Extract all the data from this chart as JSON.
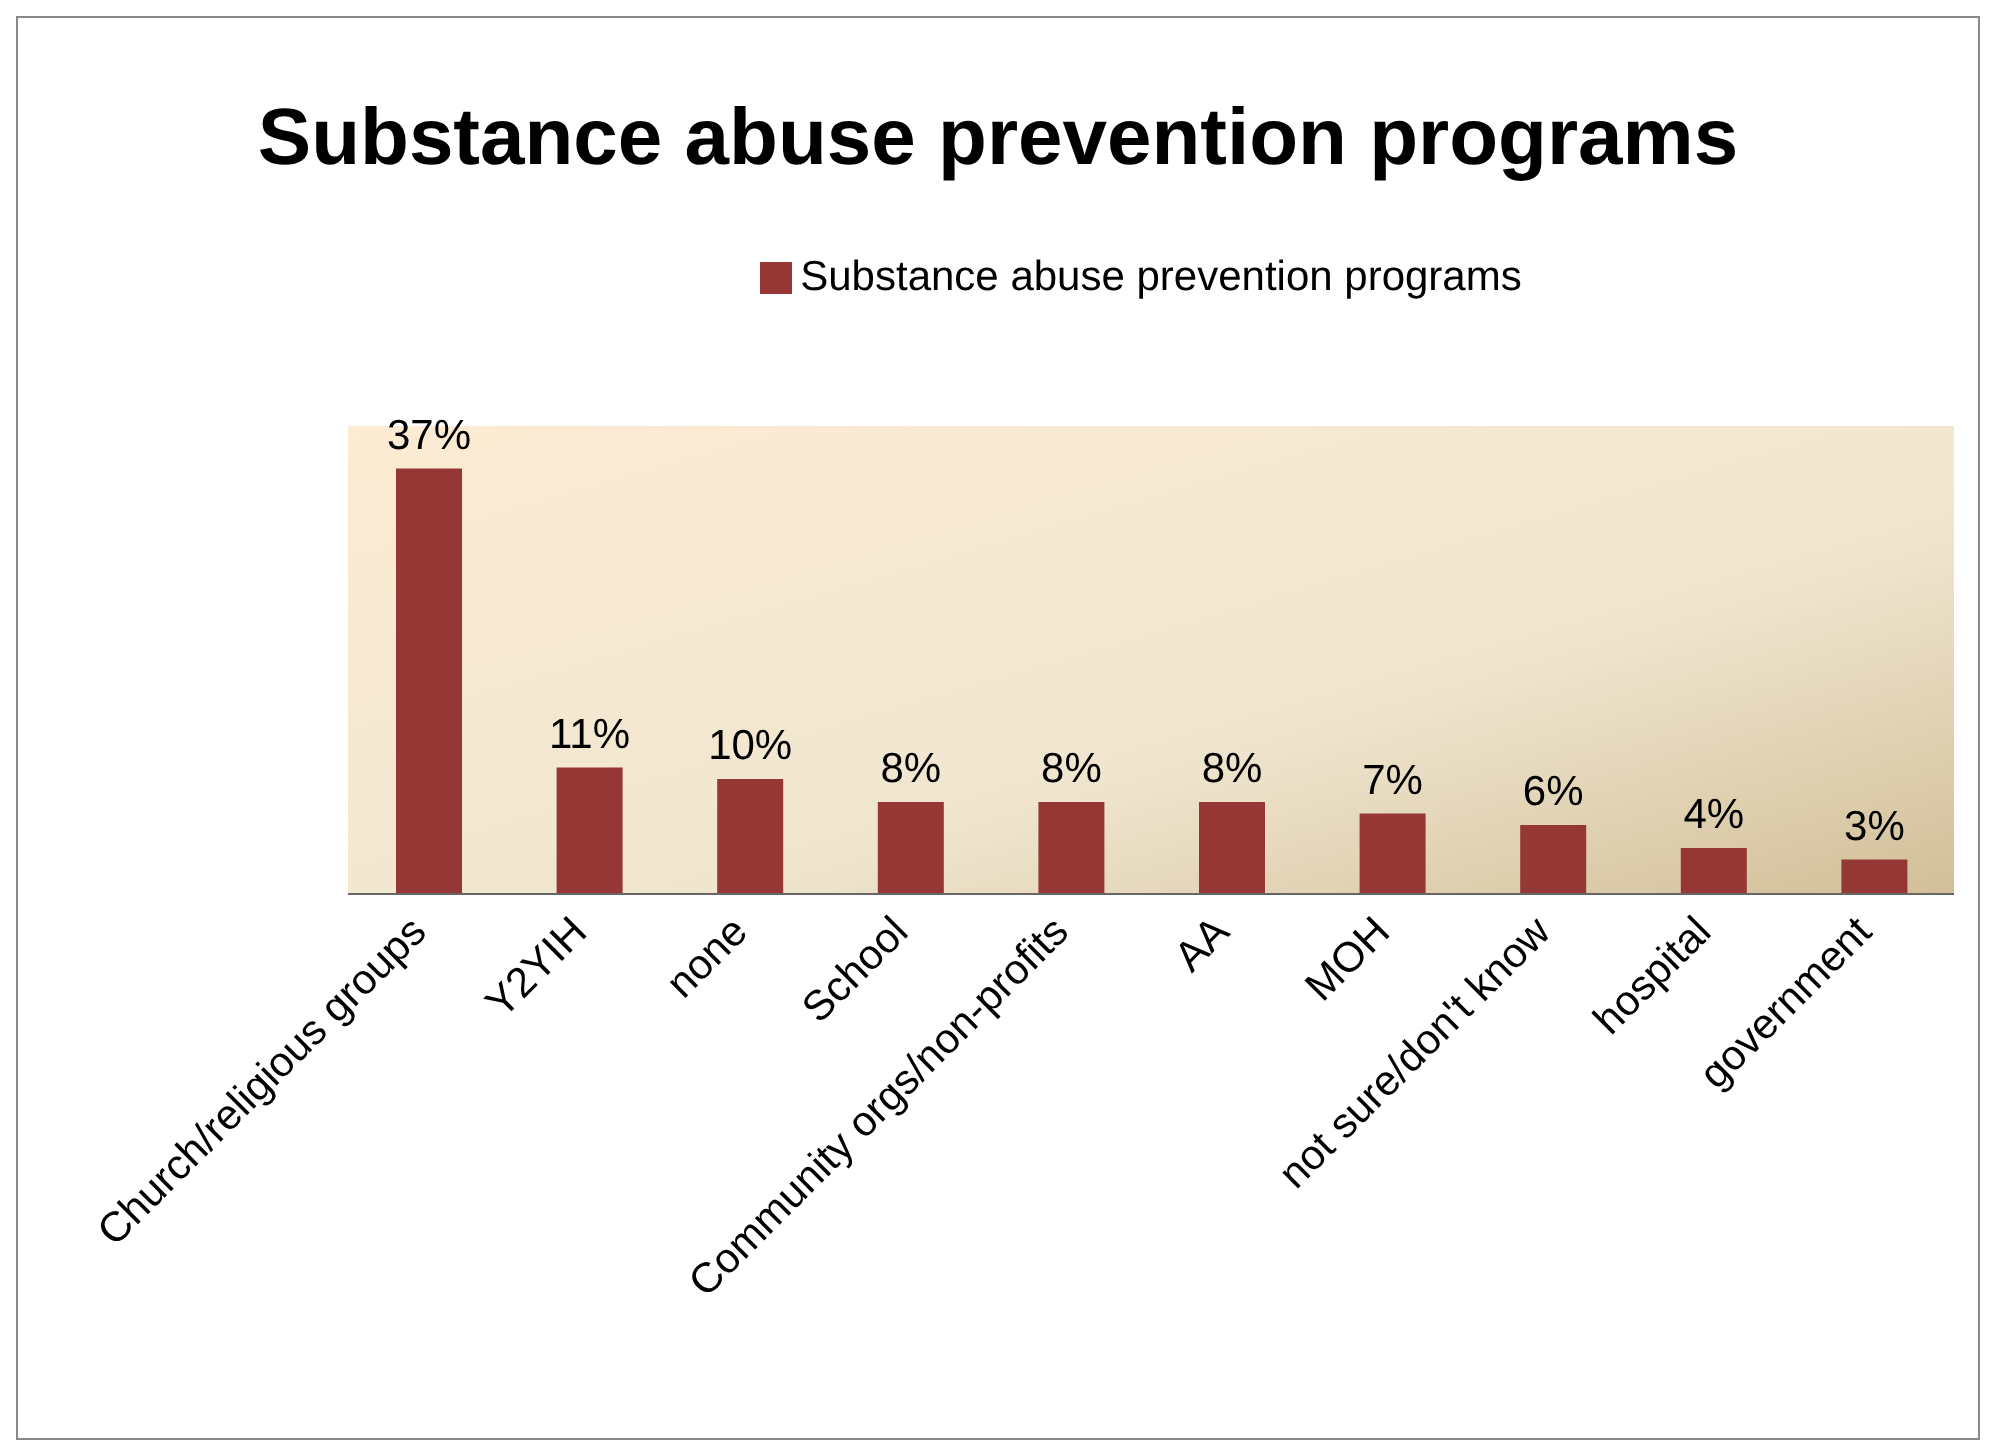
{
  "chart_data": {
    "type": "bar",
    "title": "Substance abuse prevention programs",
    "categories": [
      "Church/religious groups",
      "Y2YIH",
      "none",
      "School",
      "Community orgs/non-profits",
      "AA",
      "MOH",
      "not sure/don't know",
      "hospital",
      "government"
    ],
    "series": [
      {
        "name": "Substance abuse prevention programs",
        "color": "#953735",
        "values": [
          37,
          11,
          10,
          8,
          8,
          8,
          7,
          6,
          4,
          3
        ],
        "value_labels": [
          "37%",
          "11%",
          "10%",
          "8%",
          "8%",
          "8%",
          "7%",
          "6%",
          "4%",
          "3%"
        ]
      }
    ],
    "legend": "top",
    "grid": false,
    "tick_labels": "x"
  }
}
